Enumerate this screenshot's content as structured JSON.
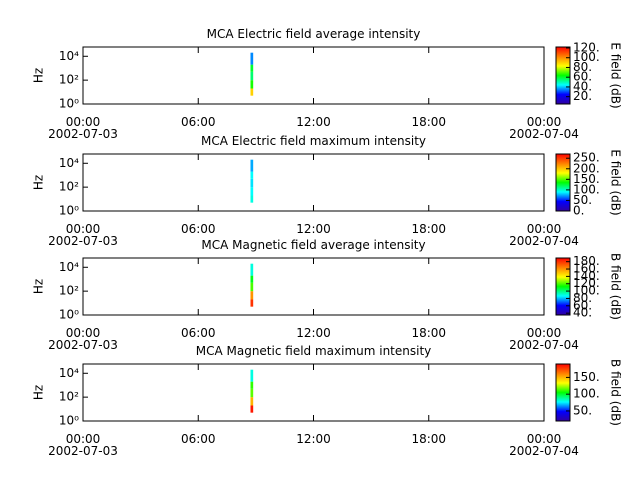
{
  "chart_data": [
    {
      "type": "heatmap",
      "title": "MCA  Electric field average intensity",
      "ylabel": "Hz",
      "colorbar_label": "E field (dB)",
      "log_y": true,
      "ylim": [
        1,
        60000
      ],
      "yticks": [
        {
          "value": 1,
          "label": "10⁰"
        },
        {
          "value": 100,
          "label": "10²"
        },
        {
          "value": 10000,
          "label": "10⁴"
        }
      ],
      "xlim": [
        0,
        24
      ],
      "xticks": [
        {
          "value": 0,
          "label": "00:00"
        },
        {
          "value": 6,
          "label": "06:00"
        },
        {
          "value": 12,
          "label": "12:00"
        },
        {
          "value": 18,
          "label": "18:00"
        },
        {
          "value": 24,
          "label": "00:00"
        }
      ],
      "xdates": [
        {
          "value": 0,
          "label": "2002-07-03"
        },
        {
          "value": 24,
          "label": "2002-07-04"
        }
      ],
      "time_bins": [
        8.72,
        8.86
      ],
      "freq_bins": [
        5,
        20,
        100,
        500,
        2000,
        20000
      ],
      "values": [
        [
          90,
          65,
          55,
          60,
          35
        ]
      ],
      "clim": [
        5,
        122
      ],
      "cticks": [
        {
          "value": 20,
          "label": "20."
        },
        {
          "value": 40,
          "label": "40."
        },
        {
          "value": 60,
          "label": "60."
        },
        {
          "value": 80,
          "label": "80."
        },
        {
          "value": 100,
          "label": "100."
        },
        {
          "value": 120,
          "label": "120."
        }
      ],
      "colormap": [
        "#3000a0",
        "#0000ff",
        "#00ffff",
        "#00ff00",
        "#ffff00",
        "#ff8000",
        "#ff0000"
      ]
    },
    {
      "type": "heatmap",
      "title": "MCA  Electric field maximum intensity",
      "ylabel": "Hz",
      "colorbar_label": "E field (dB)",
      "log_y": true,
      "ylim": [
        1,
        60000
      ],
      "yticks": [
        {
          "value": 1,
          "label": "10⁰"
        },
        {
          "value": 100,
          "label": "10²"
        },
        {
          "value": 10000,
          "label": "10⁴"
        }
      ],
      "xlim": [
        0,
        24
      ],
      "xticks": [
        {
          "value": 0,
          "label": "00:00"
        },
        {
          "value": 6,
          "label": "06:00"
        },
        {
          "value": 12,
          "label": "12:00"
        },
        {
          "value": 18,
          "label": "18:00"
        },
        {
          "value": 24,
          "label": "00:00"
        }
      ],
      "xdates": [
        {
          "value": 0,
          "label": "2002-07-03"
        },
        {
          "value": 24,
          "label": "2002-07-04"
        }
      ],
      "time_bins": [
        8.72,
        8.86
      ],
      "freq_bins": [
        5,
        20,
        100,
        500,
        2000,
        20000
      ],
      "values": [
        [
          95,
          90,
          85,
          90,
          75
        ]
      ],
      "clim": [
        0,
        270
      ],
      "cticks": [
        {
          "value": 0,
          "label": "0."
        },
        {
          "value": 50,
          "label": "50."
        },
        {
          "value": 100,
          "label": "100."
        },
        {
          "value": 150,
          "label": "150."
        },
        {
          "value": 200,
          "label": "200."
        },
        {
          "value": 250,
          "label": "250."
        }
      ],
      "colormap": [
        "#3000a0",
        "#0000ff",
        "#00ffff",
        "#00ff00",
        "#ffff00",
        "#ff8000",
        "#ff0000"
      ]
    },
    {
      "type": "heatmap",
      "title": "MCA  Magnetic field average intensity",
      "ylabel": "Hz",
      "colorbar_label": "B field (dB)",
      "log_y": true,
      "ylim": [
        1,
        60000
      ],
      "yticks": [
        {
          "value": 1,
          "label": "10⁰"
        },
        {
          "value": 100,
          "label": "10²"
        },
        {
          "value": 10000,
          "label": "10⁴"
        }
      ],
      "xlim": [
        0,
        24
      ],
      "xticks": [
        {
          "value": 0,
          "label": "00:00"
        },
        {
          "value": 6,
          "label": "06:00"
        },
        {
          "value": 12,
          "label": "12:00"
        },
        {
          "value": 18,
          "label": "18:00"
        },
        {
          "value": 24,
          "label": "00:00"
        }
      ],
      "xdates": [
        {
          "value": 0,
          "label": "2002-07-03"
        },
        {
          "value": 24,
          "label": "2002-07-04"
        }
      ],
      "time_bins": [
        8.72,
        8.86
      ],
      "freq_bins": [
        5,
        20,
        100,
        500,
        2000,
        20000
      ],
      "values": [
        [
          180,
          160,
          120,
          110,
          90
        ]
      ],
      "clim": [
        35,
        190
      ],
      "cticks": [
        {
          "value": 40,
          "label": "40."
        },
        {
          "value": 60,
          "label": "60."
        },
        {
          "value": 80,
          "label": "80."
        },
        {
          "value": 100,
          "label": "100."
        },
        {
          "value": 120,
          "label": "120."
        },
        {
          "value": 140,
          "label": "140."
        },
        {
          "value": 160,
          "label": "160."
        },
        {
          "value": 180,
          "label": "180."
        }
      ],
      "colormap": [
        "#3000a0",
        "#0000ff",
        "#00ffff",
        "#00ff00",
        "#ffff00",
        "#ff8000",
        "#ff0000"
      ]
    },
    {
      "type": "heatmap",
      "title": "MCA  Magnetic field maximum intensity",
      "ylabel": "Hz",
      "colorbar_label": "B field (dB)",
      "log_y": true,
      "ylim": [
        1,
        60000
      ],
      "yticks": [
        {
          "value": 1,
          "label": "10⁰"
        },
        {
          "value": 100,
          "label": "10²"
        },
        {
          "value": 10000,
          "label": "10⁴"
        }
      ],
      "xlim": [
        0,
        24
      ],
      "xticks": [
        {
          "value": 0,
          "label": "00:00"
        },
        {
          "value": 6,
          "label": "06:00"
        },
        {
          "value": 12,
          "label": "12:00"
        },
        {
          "value": 18,
          "label": "18:00"
        },
        {
          "value": 24,
          "label": "00:00"
        }
      ],
      "xdates": [
        {
          "value": 0,
          "label": "2002-07-03"
        },
        {
          "value": 24,
          "label": "2002-07-04"
        }
      ],
      "time_bins": [
        8.72,
        8.86
      ],
      "freq_bins": [
        5,
        20,
        100,
        500,
        2000,
        20000
      ],
      "values": [
        [
          185,
          150,
          115,
          110,
          80
        ]
      ],
      "clim": [
        20,
        190
      ],
      "cticks": [
        {
          "value": 50,
          "label": "50."
        },
        {
          "value": 100,
          "label": "100."
        },
        {
          "value": 150,
          "label": "150."
        }
      ],
      "colormap": [
        "#3000a0",
        "#0000ff",
        "#00ffff",
        "#00ff00",
        "#ffff00",
        "#ff8000",
        "#ff0000"
      ]
    }
  ]
}
